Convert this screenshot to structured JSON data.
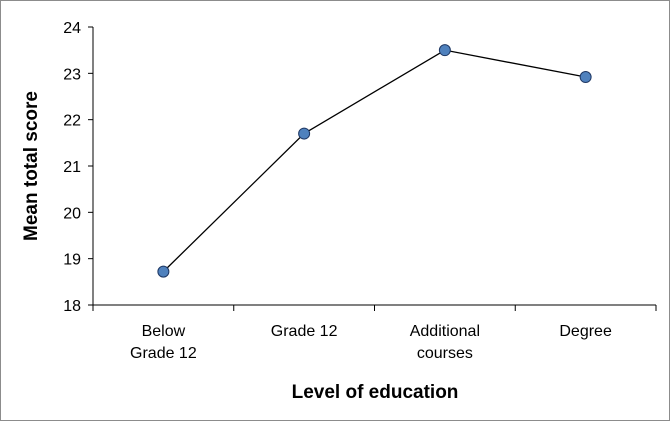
{
  "chart_data": {
    "type": "line",
    "categories": [
      [
        "Below",
        "Grade 12"
      ],
      [
        "Grade 12"
      ],
      [
        "Additional",
        "courses"
      ],
      [
        "Degree"
      ]
    ],
    "values": [
      18.72,
      21.7,
      23.5,
      22.92
    ],
    "xlabel": "Level of education",
    "ylabel": "Mean total score",
    "ylim": [
      18,
      24
    ],
    "yticks": [
      "18",
      "19",
      "20",
      "21",
      "22",
      "23",
      "24"
    ],
    "grid": false,
    "legend": "none",
    "colors": {
      "marker_fill": "#4f81bd",
      "marker_stroke": "#1f3864",
      "line": "#000000",
      "axis": "#000000"
    }
  }
}
